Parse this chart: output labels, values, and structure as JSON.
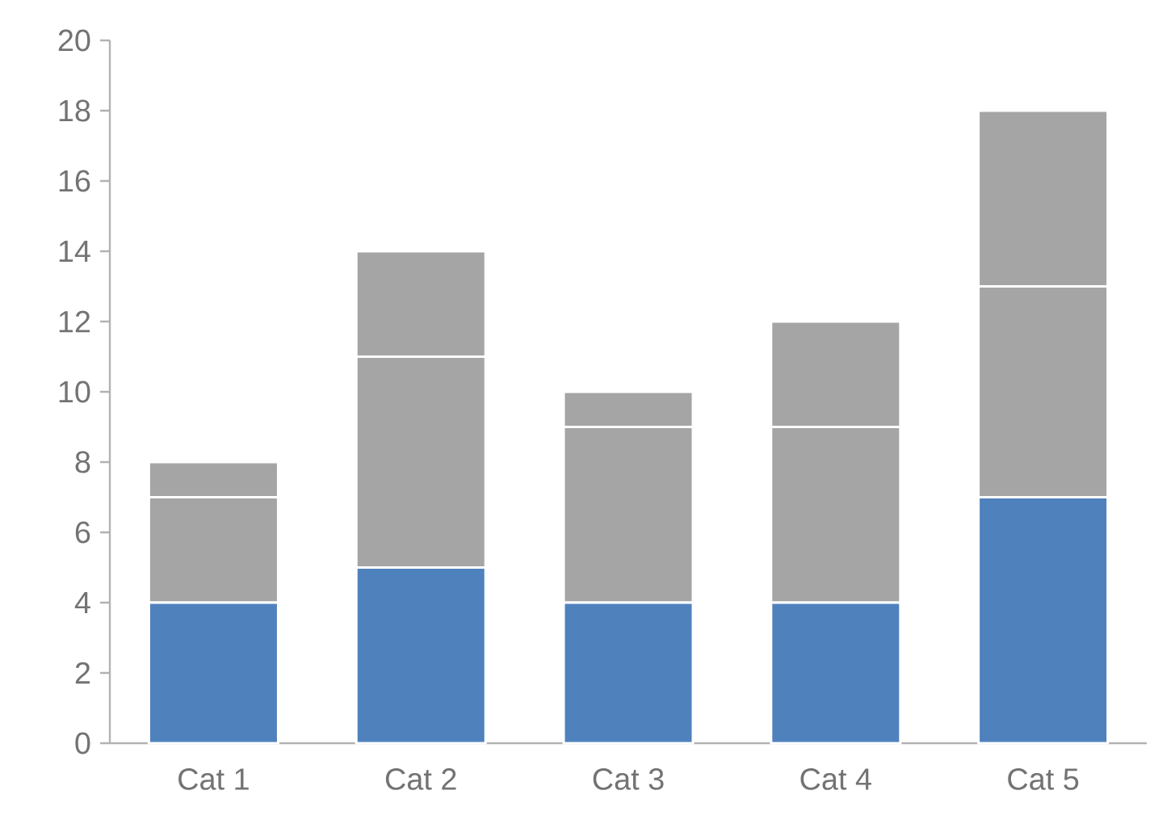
{
  "chart_data": {
    "type": "bar",
    "stacked": true,
    "categories": [
      "Cat 1",
      "Cat 2",
      "Cat 3",
      "Cat 4",
      "Cat 5"
    ],
    "series": [
      {
        "color": "#4f81bd",
        "values": [
          4,
          5,
          4,
          4,
          7
        ]
      },
      {
        "color": "#a5a5a5",
        "values": [
          3,
          6,
          5,
          5,
          6
        ]
      },
      {
        "color": "#a5a5a5",
        "values": [
          1,
          3,
          1,
          3,
          5
        ]
      }
    ],
    "ylim": [
      0,
      20
    ],
    "yticks": [
      0,
      2,
      4,
      6,
      8,
      10,
      12,
      14,
      16,
      18,
      20
    ],
    "grid": false
  }
}
